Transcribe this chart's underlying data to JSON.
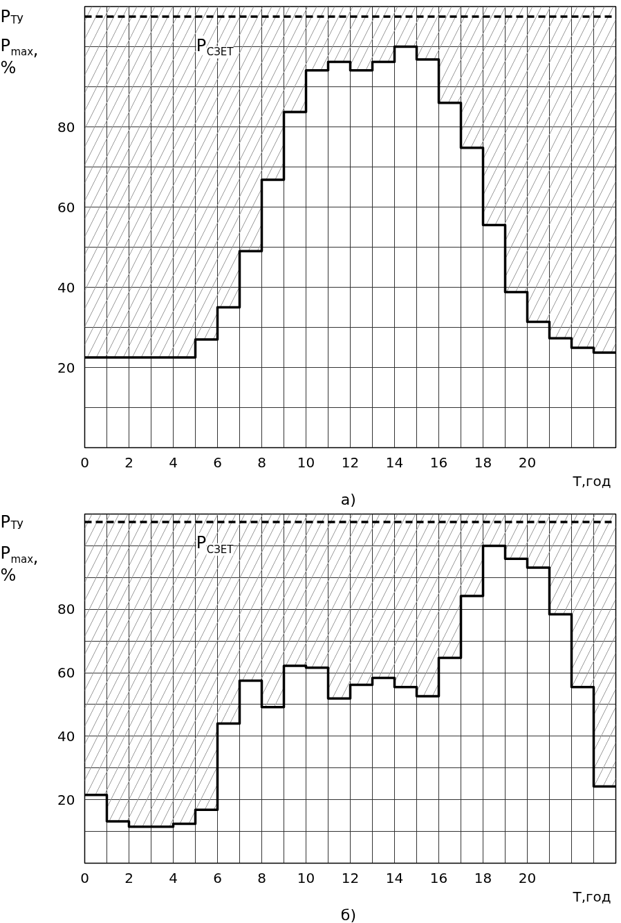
{
  "chart_data": [
    {
      "type": "step",
      "ylabel": "P$_{max}$, %",
      "xlabel": "T,год",
      "x": [
        0,
        1,
        2,
        3,
        4,
        5,
        6,
        7,
        8,
        9,
        10,
        11,
        12,
        13,
        14,
        15,
        16,
        17,
        18,
        19,
        20,
        21,
        22,
        23,
        24
      ],
      "title": "а)",
      "series": [
        {
          "color": "#000000",
          "values": [
            22.5,
            22.5,
            22.5,
            22.5,
            22.5,
            27,
            35,
            49,
            66.8,
            83.7,
            94.1,
            96.2,
            94.1,
            96.2,
            100,
            96.8,
            86,
            74.8,
            55.5,
            38.8,
            31.4,
            27.3,
            24.9,
            23.7,
            23.7
          ],
          "lower": [
            22.5,
            22.5,
            22.5,
            22.5,
            22.5,
            27,
            35,
            49,
            66.8,
            83.7,
            94.1,
            96.2,
            94.1,
            96.2,
            100,
            96.8,
            86,
            74.8,
            55.5,
            38.8,
            31.4,
            27.3,
            24.9,
            23.7,
            23.7
          ],
          "upper": [
            110,
            110,
            110,
            110,
            110,
            110,
            110,
            110,
            110,
            110,
            110,
            110,
            110,
            110,
            110,
            110,
            110,
            110,
            110,
            110,
            110,
            110,
            110,
            110,
            110
          ]
        }
      ],
      "xlim": [
        0,
        24
      ],
      "ylim": [
        0,
        110
      ],
      "xticks": [
        0,
        {
          "value": 1,
          "label": null
        },
        2,
        {
          "value": 3,
          "label": null
        },
        4,
        {
          "value": 5,
          "label": null
        },
        6,
        {
          "value": 7,
          "label": null
        },
        8,
        {
          "value": 9,
          "label": null
        },
        10,
        {
          "value": 11,
          "label": null
        },
        12,
        {
          "value": 13,
          "label": null
        },
        14,
        {
          "value": 15,
          "label": null
        },
        16,
        {
          "value": 17,
          "label": null
        },
        18,
        {
          "value": 19,
          "label": null
        },
        20,
        {
          "value": 21,
          "label": null
        },
        {
          "value": 22,
          "label": null
        },
        {
          "value": 23,
          "label": null
        },
        {
          "value": 24,
          "label": null
        }
      ],
      "yticks": [
        {
          "value": 0,
          "label": null
        },
        {
          "value": 10,
          "label": null
        },
        20,
        {
          "value": 30,
          "label": null
        },
        40,
        {
          "value": 50,
          "label": null
        },
        60,
        {
          "value": 70,
          "label": null
        },
        80,
        {
          "value": 90,
          "label": null
        },
        {
          "value": 100,
          "label": null
        },
        {
          "value": 110,
          "label": null
        }
      ],
      "ref_lines": [
        {
          "axis": "y",
          "value": 107.5,
          "label": "P$_{ТУ}$",
          "color": "#000000",
          "line_style": "dashed"
        }
      ],
      "annotations": [
        "P$_{СЗЕТ}$"
      ],
      "grid": true,
      "marker": "none",
      "line_style": "solid"
    },
    {
      "type": "step",
      "ylabel": "P$_{max}$, %",
      "xlabel": "T,год",
      "x": [
        0,
        1,
        2,
        3,
        4,
        5,
        6,
        7,
        8,
        9,
        10,
        11,
        12,
        13,
        14,
        15,
        16,
        17,
        18,
        19,
        20,
        21,
        22,
        23,
        24
      ],
      "title": "б)",
      "series": [
        {
          "color": "#000000",
          "values": [
            21.5,
            13.2,
            11.5,
            11.5,
            12.4,
            16.8,
            44,
            57.5,
            49.2,
            62.2,
            61.6,
            51.9,
            56.2,
            58.4,
            55.5,
            52.6,
            64.7,
            84.2,
            100,
            95.9,
            93.1,
            78.4,
            55.5,
            24.2,
            24.2
          ],
          "lower": [
            21.5,
            13.2,
            11.5,
            11.5,
            12.4,
            16.8,
            44,
            57.5,
            49.2,
            62.2,
            61.6,
            51.9,
            56.2,
            58.4,
            55.5,
            52.6,
            64.7,
            84.2,
            100,
            95.9,
            93.1,
            78.4,
            55.5,
            24.2,
            24.2
          ],
          "upper": [
            110,
            110,
            110,
            110,
            110,
            110,
            110,
            110,
            110,
            110,
            110,
            110,
            110,
            110,
            110,
            110,
            110,
            110,
            110,
            110,
            110,
            110,
            110,
            110,
            110
          ]
        }
      ],
      "xlim": [
        0,
        24
      ],
      "ylim": [
        0,
        110
      ],
      "xticks": [
        0,
        {
          "value": 1,
          "label": null
        },
        2,
        {
          "value": 3,
          "label": null
        },
        4,
        {
          "value": 5,
          "label": null
        },
        6,
        {
          "value": 7,
          "label": null
        },
        8,
        {
          "value": 9,
          "label": null
        },
        10,
        {
          "value": 11,
          "label": null
        },
        12,
        {
          "value": 13,
          "label": null
        },
        14,
        {
          "value": 15,
          "label": null
        },
        16,
        {
          "value": 17,
          "label": null
        },
        18,
        {
          "value": 19,
          "label": null
        },
        20,
        {
          "value": 21,
          "label": null
        },
        {
          "value": 22,
          "label": null
        },
        {
          "value": 23,
          "label": null
        },
        {
          "value": 24,
          "label": null
        }
      ],
      "yticks": [
        {
          "value": 0,
          "label": null
        },
        {
          "value": 10,
          "label": null
        },
        20,
        {
          "value": 30,
          "label": null
        },
        40,
        {
          "value": 50,
          "label": null
        },
        60,
        {
          "value": 70,
          "label": null
        },
        80,
        {
          "value": 90,
          "label": null
        },
        {
          "value": 100,
          "label": null
        },
        {
          "value": 110,
          "label": null
        }
      ],
      "ref_lines": [
        {
          "axis": "y",
          "value": 107.5,
          "label": "P$_{ТУ}$",
          "color": "#000000",
          "line_style": "dashed"
        }
      ],
      "annotations": [
        "P$_{СЗЕТ}$"
      ],
      "grid": true,
      "marker": "none",
      "line_style": "solid"
    }
  ]
}
